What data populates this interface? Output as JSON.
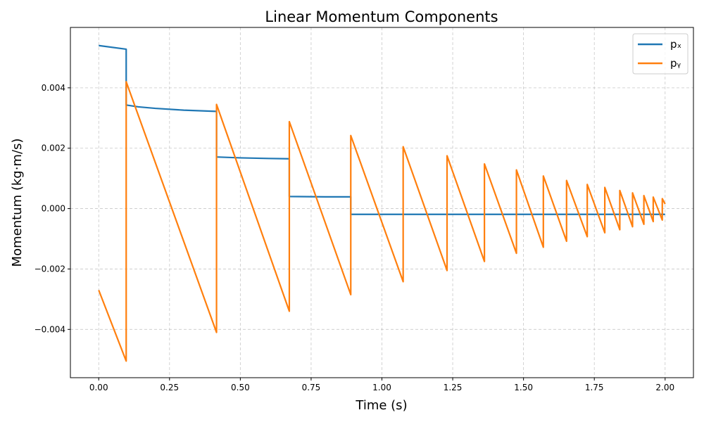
{
  "chart_data": {
    "type": "line",
    "title": "Linear Momentum Components",
    "xlabel": "Time (s)",
    "ylabel": "Momentum (kg·m/s)",
    "xlim": [
      -0.1,
      2.1
    ],
    "ylim": [
      -0.0056,
      0.006
    ],
    "xticks": [
      0.0,
      0.25,
      0.5,
      0.75,
      1.0,
      1.25,
      1.5,
      1.75,
      2.0
    ],
    "xtick_labels": [
      "0.00",
      "0.25",
      "0.50",
      "0.75",
      "1.00",
      "1.25",
      "1.50",
      "1.75",
      "2.00"
    ],
    "yticks": [
      -0.004,
      -0.002,
      0.0,
      0.002,
      0.004
    ],
    "ytick_labels": [
      "−0.004",
      "−0.002",
      "0.000",
      "0.002",
      "0.004"
    ],
    "grid": true,
    "legend_position": "top-right",
    "series": [
      {
        "name": "pₓ",
        "color": "#1f77b4",
        "x": [
          0.0,
          0.097,
          0.097,
          0.14,
          0.2,
          0.3,
          0.416,
          0.416,
          0.5,
          0.6,
          0.673,
          0.673,
          0.8,
          0.89,
          0.89,
          1.0,
          1.5,
          2.0
        ],
        "y": [
          0.0054,
          0.00528,
          0.00343,
          0.00337,
          0.00332,
          0.00326,
          0.00322,
          0.00171,
          0.00168,
          0.00166,
          0.00165,
          0.0004,
          0.00039,
          0.00039,
          -0.00019,
          -0.00019,
          -0.00019,
          -0.00019
        ]
      },
      {
        "name": "pᵧ",
        "color": "#ff7f0e",
        "x": [
          0.0,
          0.097,
          0.097,
          0.416,
          0.416,
          0.673,
          0.673,
          0.89,
          0.89,
          1.075,
          1.075,
          1.23,
          1.23,
          1.362,
          1.362,
          1.475,
          1.475,
          1.57,
          1.57,
          1.652,
          1.652,
          1.725,
          1.725,
          1.787,
          1.787,
          1.84,
          1.84,
          1.885,
          1.885,
          1.925,
          1.925,
          1.958,
          1.958,
          1.99,
          1.99,
          2.0
        ],
        "y": [
          -0.0027,
          -0.00505,
          0.0042,
          -0.0041,
          0.00345,
          -0.0034,
          0.00288,
          -0.00285,
          0.00242,
          -0.00242,
          0.00205,
          -0.00205,
          0.00175,
          -0.00175,
          0.00148,
          -0.00148,
          0.00128,
          -0.00128,
          0.00108,
          -0.00108,
          0.00093,
          -0.00093,
          0.0008,
          -0.0008,
          0.0007,
          -0.0007,
          0.0006,
          -0.0006,
          0.00052,
          -0.00052,
          0.00043,
          -0.00043,
          0.00038,
          -0.00038,
          0.00033,
          0.00015
        ]
      }
    ]
  }
}
